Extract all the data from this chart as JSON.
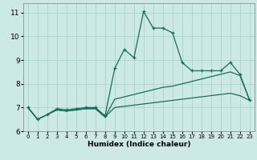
{
  "xlabel": "Humidex (Indice chaleur)",
  "xlim": [
    -0.5,
    23.5
  ],
  "ylim": [
    6,
    11.4
  ],
  "yticks": [
    6,
    7,
    8,
    9,
    10,
    11
  ],
  "xticks": [
    0,
    1,
    2,
    3,
    4,
    5,
    6,
    7,
    8,
    9,
    10,
    11,
    12,
    13,
    14,
    15,
    16,
    17,
    18,
    19,
    20,
    21,
    22,
    23
  ],
  "bg_color": "#cce9e5",
  "grid_color": "#aad4cf",
  "line_color": "#1a6b5a",
  "line1_x": [
    0,
    1,
    2,
    3,
    4,
    5,
    6,
    7,
    8,
    9,
    10,
    11,
    12,
    13,
    14,
    15,
    16,
    17,
    18,
    19,
    20,
    21,
    22,
    23
  ],
  "line1_y": [
    7.0,
    6.5,
    6.7,
    6.95,
    6.9,
    6.95,
    7.0,
    7.0,
    6.65,
    8.65,
    9.45,
    9.1,
    11.05,
    10.35,
    10.35,
    10.15,
    8.9,
    8.55,
    8.55,
    8.55,
    8.55,
    8.9,
    8.4,
    7.3
  ],
  "line2_x": [
    0,
    1,
    2,
    3,
    4,
    5,
    6,
    7,
    8,
    9,
    10,
    11,
    12,
    13,
    14,
    15,
    16,
    17,
    18,
    19,
    20,
    21,
    22,
    23
  ],
  "line2_y": [
    7.0,
    6.5,
    6.7,
    6.9,
    6.85,
    6.9,
    6.95,
    6.95,
    6.6,
    7.35,
    7.45,
    7.55,
    7.65,
    7.75,
    7.85,
    7.9,
    8.0,
    8.1,
    8.2,
    8.3,
    8.4,
    8.5,
    8.35,
    7.3
  ],
  "line3_x": [
    0,
    1,
    2,
    3,
    4,
    5,
    6,
    7,
    8,
    9,
    10,
    11,
    12,
    13,
    14,
    15,
    16,
    17,
    18,
    19,
    20,
    21,
    22,
    23
  ],
  "line3_y": [
    7.0,
    6.5,
    6.7,
    6.9,
    6.85,
    6.9,
    6.95,
    6.95,
    6.6,
    7.0,
    7.05,
    7.1,
    7.15,
    7.2,
    7.25,
    7.3,
    7.35,
    7.4,
    7.45,
    7.5,
    7.55,
    7.6,
    7.5,
    7.3
  ]
}
